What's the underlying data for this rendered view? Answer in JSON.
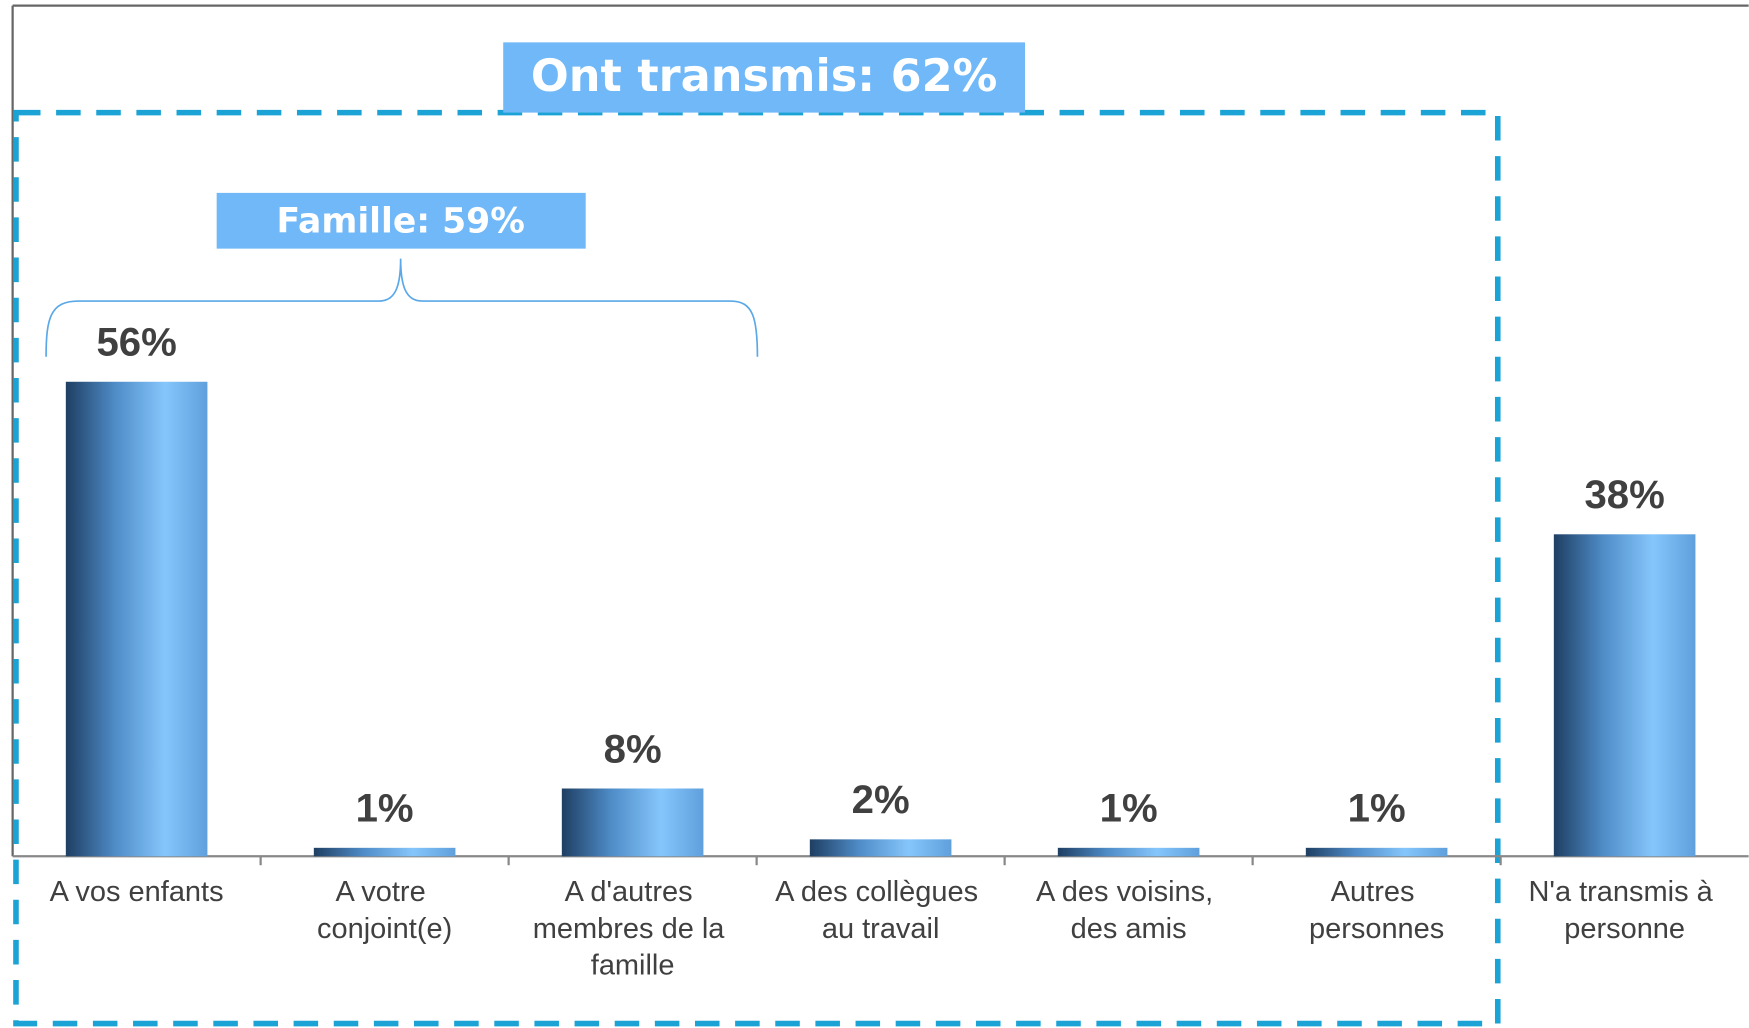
{
  "chart_data": {
    "type": "bar",
    "categories": [
      "A vos enfants",
      "A votre conjoint(e)",
      "A d'autres membres de la famille",
      "A des collègues au travail",
      "A des voisins, des amis",
      "Autres personnes",
      "N'a transmis à personne"
    ],
    "values": [
      56,
      1,
      8,
      2,
      1,
      1,
      38
    ],
    "value_labels": [
      "56%",
      "1%",
      "8%",
      "2%",
      "1%",
      "1%",
      "38%"
    ],
    "color": "#5fa8ec",
    "annotations": [
      "Ont transmis: 62%",
      "Famille: 59%"
    ]
  }
}
